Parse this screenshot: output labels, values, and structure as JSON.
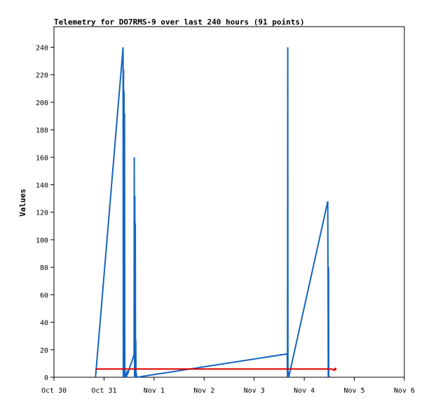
{
  "chart_data": {
    "type": "line",
    "title": "Telemetry for DO7RMS-9 over last 240 hours (91 points)",
    "xlabel": "",
    "ylabel": "Values",
    "x_ticks": [
      "Oct 30",
      "Oct 31",
      "Nov 1",
      "Nov 2",
      "Nov 3",
      "Nov 4",
      "Nov 5",
      "Nov 6"
    ],
    "xlim": [
      0,
      7
    ],
    "ylim": [
      0,
      255
    ],
    "y_ticks": [
      0,
      20,
      40,
      60,
      80,
      100,
      120,
      140,
      160,
      180,
      200,
      220,
      240
    ],
    "grid": false,
    "series": [
      {
        "name": "",
        "color": "#1565c0",
        "x": [
          0.83,
          1.38,
          1.385,
          1.39,
          1.395,
          1.4,
          1.405,
          1.41,
          1.415,
          1.42,
          1.425,
          1.43,
          1.44,
          1.445,
          1.45,
          1.455,
          1.46,
          1.47,
          1.48,
          1.49,
          1.52,
          1.55,
          1.58,
          1.6,
          1.605,
          1.61,
          1.615,
          1.62,
          1.625,
          1.63,
          1.635,
          1.64,
          1.645,
          1.65,
          1.655,
          4.66,
          4.665,
          4.67,
          4.675,
          4.68,
          4.69,
          5.47,
          5.475,
          5.48,
          5.485,
          5.49,
          5.495,
          5.5
        ],
        "y": [
          0,
          240,
          0,
          224,
          0,
          208,
          0,
          192,
          0,
          4,
          0,
          2,
          0,
          3,
          0,
          1,
          5,
          2,
          3,
          4,
          8,
          11,
          14,
          17,
          160,
          0,
          132,
          0,
          112,
          0,
          27,
          0,
          3,
          0,
          0,
          17,
          0,
          240,
          0,
          4,
          0,
          128,
          64,
          0,
          80,
          0,
          1,
          0
        ]
      },
      {
        "name": "",
        "color": "#e00000",
        "x": [
          0.83,
          1.5,
          2.5,
          3.5,
          4.5,
          5.5,
          5.52,
          5.55,
          5.6,
          5.62
        ],
        "y": [
          6,
          6,
          6,
          6,
          6,
          6,
          6,
          6,
          5,
          6
        ]
      }
    ]
  }
}
